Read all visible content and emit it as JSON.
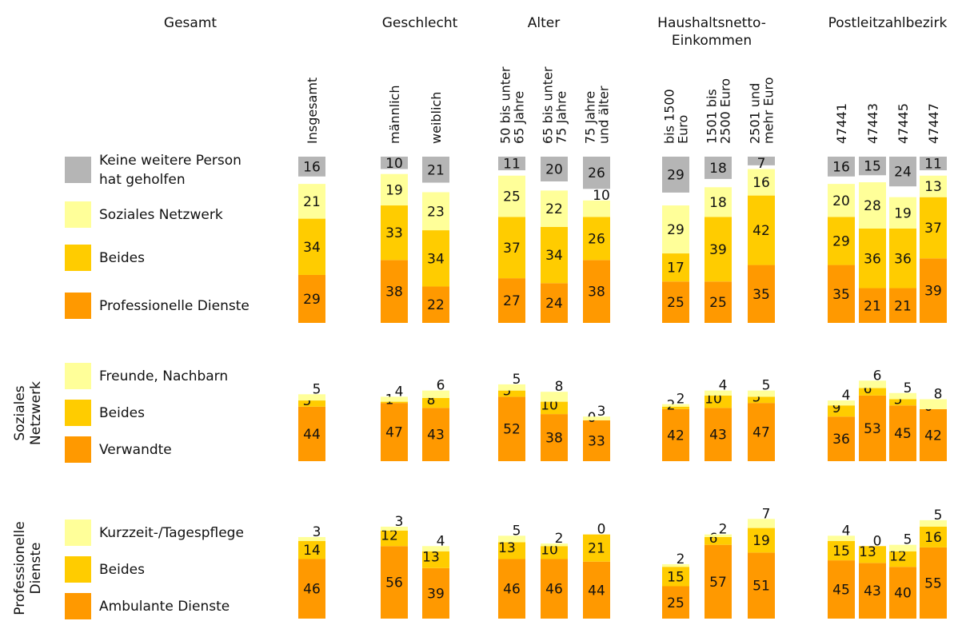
{
  "colors": {
    "keine": "#b5b5b5",
    "netz": "#ffff99",
    "beides": "#ffcc00",
    "prof": "#ff9900"
  },
  "groups": [
    "Gesamt",
    "Geschlecht",
    "Alter",
    "Haushaltsnetto-\nEinkommen",
    "Postleitzahlbezirk"
  ],
  "columns": [
    "Insgesamt",
    "männlich",
    "weiblich",
    "50 bis unter\n65 Jahre",
    "65 bis unter\n75 Jahre",
    "75 Jahre\nund älter",
    "bis 1500\nEuro",
    "1501 bis\n2500 Euro",
    "2501 und\nmehr Euro",
    "47441",
    "47443",
    "47445",
    "47447"
  ],
  "sections": [
    {
      "name": "",
      "legend": [
        "Keine weitere Person\nhat geholfen",
        "Soziales Netzwerk",
        "Beides",
        "Professionelle Dienste"
      ]
    },
    {
      "name": "Soziales\nNetzwerk",
      "legend": [
        "Freunde, Nachbarn",
        "Beides",
        "Verwandte"
      ]
    },
    {
      "name": "Professionelle\nDienste",
      "legend": [
        "Kurzzeit-/Tagespflege",
        "Beides",
        "Ambulante Dienste"
      ]
    }
  ],
  "chart_data": [
    {
      "type": "bar",
      "stacked": true,
      "categories": [
        "Insgesamt",
        "männlich",
        "weiblich",
        "50 bis unter 65 Jahre",
        "65 bis unter 75 Jahre",
        "75 Jahre und älter",
        "bis 1500 Euro",
        "1501 bis 2500 Euro",
        "2501 und mehr Euro",
        "47441",
        "47443",
        "47445",
        "47447"
      ],
      "series": [
        {
          "name": "Professionelle Dienste",
          "values": [
            29,
            38,
            22,
            27,
            24,
            38,
            25,
            25,
            35,
            35,
            21,
            21,
            39
          ]
        },
        {
          "name": "Beides",
          "values": [
            34,
            33,
            34,
            37,
            34,
            26,
            17,
            39,
            42,
            29,
            36,
            36,
            37
          ]
        },
        {
          "name": "Soziales Netzwerk",
          "values": [
            21,
            19,
            23,
            25,
            22,
            10,
            29,
            18,
            16,
            20,
            28,
            19,
            13
          ]
        },
        {
          "name": "Keine weitere Person hat geholfen",
          "values": [
            16,
            10,
            21,
            11,
            20,
            26,
            29,
            18,
            7,
            16,
            15,
            24,
            11
          ]
        }
      ]
    },
    {
      "type": "bar",
      "stacked": true,
      "categories": [
        "Insgesamt",
        "männlich",
        "weiblich",
        "50 bis unter 65 Jahre",
        "65 bis unter 75 Jahre",
        "75 Jahre und älter",
        "bis 1500 Euro",
        "1501 bis 2500 Euro",
        "2501 und mehr Euro",
        "47441",
        "47443",
        "47445",
        "47447"
      ],
      "series": [
        {
          "name": "Verwandte",
          "values": [
            44,
            47,
            43,
            52,
            38,
            33,
            42,
            43,
            47,
            36,
            53,
            45,
            42
          ]
        },
        {
          "name": "Beides",
          "values": [
            5,
            1,
            8,
            5,
            10,
            0,
            2,
            10,
            5,
            9,
            6,
            5,
            0
          ]
        },
        {
          "name": "Freunde, Nachbarn",
          "values": [
            5,
            4,
            6,
            5,
            8,
            3,
            2,
            4,
            5,
            4,
            6,
            5,
            8
          ]
        }
      ]
    },
    {
      "type": "bar",
      "stacked": true,
      "categories": [
        "Insgesamt",
        "männlich",
        "weiblich",
        "50 bis unter 65 Jahre",
        "65 bis unter 75 Jahre",
        "75 Jahre und älter",
        "bis 1500 Euro",
        "1501 bis 2500 Euro",
        "2501 und mehr Euro",
        "47441",
        "47443",
        "47445",
        "47447"
      ],
      "series": [
        {
          "name": "Ambulante Dienste",
          "values": [
            46,
            56,
            39,
            46,
            46,
            44,
            25,
            57,
            51,
            45,
            43,
            40,
            55
          ]
        },
        {
          "name": "Beides",
          "values": [
            14,
            12,
            13,
            13,
            10,
            21,
            15,
            6,
            19,
            15,
            13,
            12,
            16
          ]
        },
        {
          "name": "Kurzzeit-/Tagespflege",
          "values": [
            3,
            3,
            4,
            5,
            2,
            0,
            2,
            2,
            7,
            4,
            0,
            5,
            5
          ]
        }
      ]
    }
  ]
}
